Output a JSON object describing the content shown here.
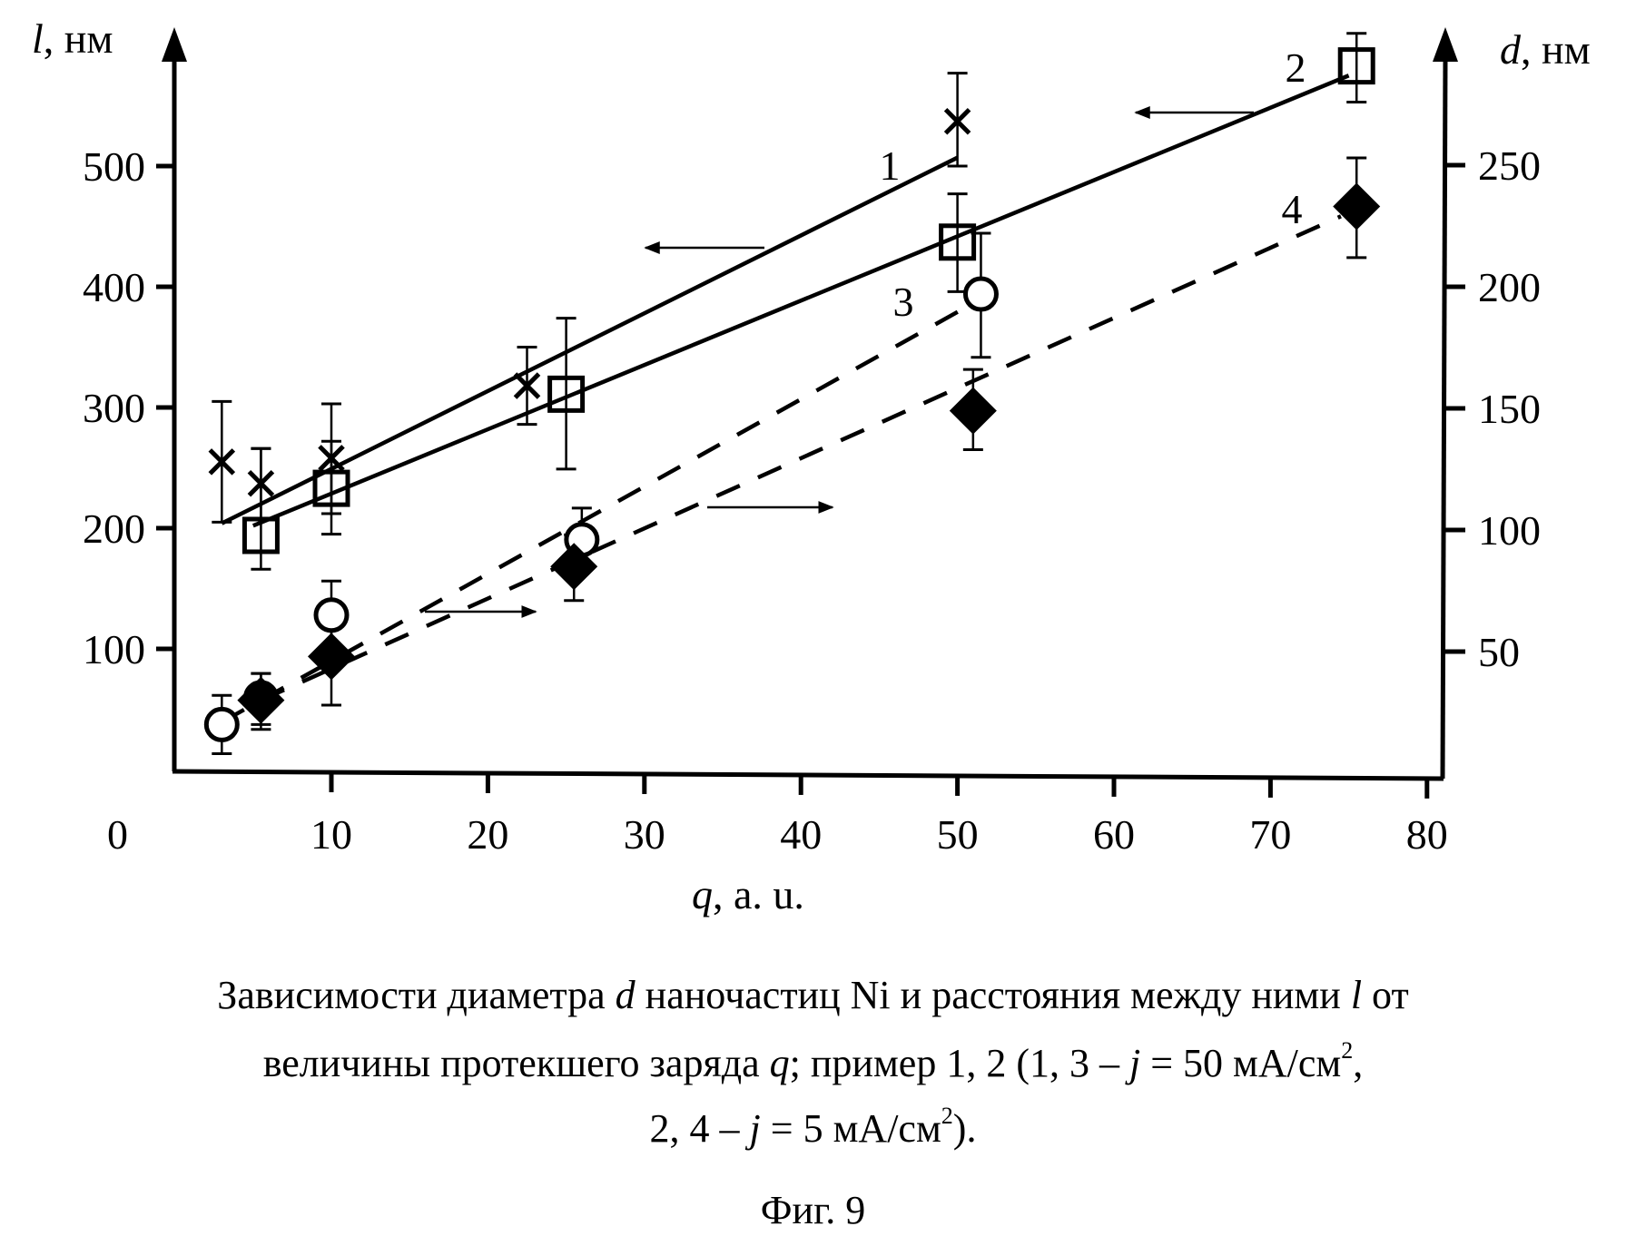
{
  "chart_data": {
    "type": "scatter",
    "title": "",
    "xlabel": {
      "var": "q",
      "unit": ", a. u."
    },
    "ylabel_left": {
      "var": "l",
      "unit": ", нм"
    },
    "ylabel_right": {
      "var": "d",
      "unit": ", нм"
    },
    "x_zero_label": "0",
    "xlim": [
      0,
      80
    ],
    "ylim_left": [
      0,
      600
    ],
    "ylim_right": [
      0,
      290
    ],
    "x_ticks": [
      10,
      20,
      30,
      40,
      50,
      60,
      70,
      80
    ],
    "y_left_ticks": [
      100,
      200,
      300,
      400,
      500
    ],
    "y_right_ticks": [
      50,
      100,
      150,
      200,
      250
    ],
    "grid": false,
    "series": [
      {
        "name": "1",
        "axis": "left",
        "marker": "cross",
        "line": "solid",
        "points": [
          {
            "x": 3,
            "y": 255,
            "lo": 205,
            "hi": 305
          },
          {
            "x": 5.5,
            "y": 237,
            "lo": 208,
            "hi": 266
          },
          {
            "x": 10,
            "y": 258,
            "lo": 212,
            "hi": 303
          },
          {
            "x": 22.5,
            "y": 318,
            "lo": 286,
            "hi": 350
          },
          {
            "x": 50,
            "y": 537,
            "lo": 500,
            "hi": 577
          }
        ],
        "fit": [
          {
            "x": 3,
            "y": 204
          },
          {
            "x": 50,
            "y": 507
          }
        ],
        "arrow": "left"
      },
      {
        "name": "2",
        "axis": "left",
        "marker": "square",
        "line": "solid",
        "points": [
          {
            "x": 5.5,
            "y": 194,
            "lo": 166,
            "hi": 266
          },
          {
            "x": 10,
            "y": 233,
            "lo": 195,
            "hi": 272
          },
          {
            "x": 25,
            "y": 311,
            "lo": 249,
            "hi": 374
          },
          {
            "x": 50,
            "y": 437,
            "lo": 396,
            "hi": 477
          },
          {
            "x": 75.5,
            "y": 583,
            "lo": 553,
            "hi": 610
          }
        ],
        "fit": [
          {
            "x": 5,
            "y": 202
          },
          {
            "x": 75,
            "y": 575
          }
        ],
        "arrow": "left"
      },
      {
        "name": "3",
        "axis": "right",
        "marker": "circle",
        "line": "dashed",
        "points": [
          {
            "x": 3,
            "y": 20,
            "lo": 8,
            "hi": 32
          },
          {
            "x": 5.5,
            "y": 31,
            "lo": 20,
            "hi": 41
          },
          {
            "x": 10,
            "y": 65,
            "lo": 52,
            "hi": 79
          },
          {
            "x": 26,
            "y": 96,
            "lo": 84,
            "hi": 109
          },
          {
            "x": 51.5,
            "y": 197,
            "lo": 171,
            "hi": 222
          }
        ],
        "fit": [
          {
            "x": 3,
            "y": 21
          },
          {
            "x": 51.5,
            "y": 195
          }
        ],
        "arrow": "right"
      },
      {
        "name": "4",
        "axis": "right",
        "marker": "diamond",
        "line": "dashed",
        "points": [
          {
            "x": 5.5,
            "y": 30,
            "lo": 18,
            "hi": 41
          },
          {
            "x": 10,
            "y": 48,
            "lo": 28,
            "hi": 62
          },
          {
            "x": 25.5,
            "y": 85,
            "lo": 71,
            "hi": 98
          },
          {
            "x": 51,
            "y": 149,
            "lo": 133,
            "hi": 166
          },
          {
            "x": 75.5,
            "y": 233,
            "lo": 212,
            "hi": 253
          }
        ],
        "fit": [
          {
            "x": 5.5,
            "y": 30
          },
          {
            "x": 74.5,
            "y": 229
          }
        ],
        "arrow": "right"
      }
    ]
  },
  "caption": {
    "line1_a": "Зависимости диаметра ",
    "line1_d": "d",
    "line1_b": " наночастиц Ni и расстояния между ними ",
    "line1_l": "l",
    "line1_c": " от",
    "line2_a": "величины протекшего заряда ",
    "line2_q": "q",
    "line2_b": "; пример 1, 2 (1, 3 – ",
    "line2_j": "j",
    "line2_c": " = 50 мА/см",
    "line2_sup": "2",
    "line2_d": ",",
    "line3_a": "2, 4 – ",
    "line3_j": "j",
    "line3_b": " = 5 мА/см",
    "line3_sup": "2",
    "line3_c": ").",
    "figure_label": "Фиг. 9"
  }
}
